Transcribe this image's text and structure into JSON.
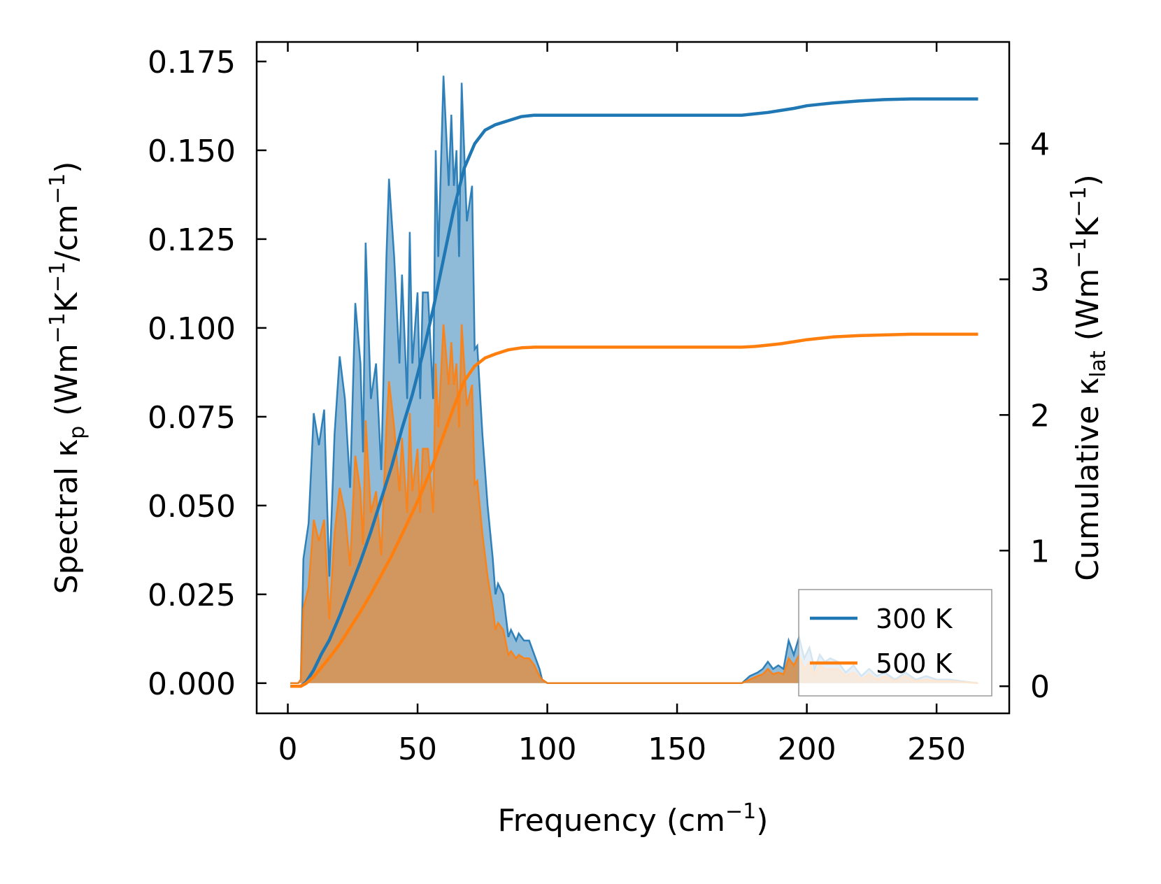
{
  "chart_data": {
    "type": "line",
    "title": "",
    "xlabel": "Frequency (cm",
    "xlabel_sup": "−1",
    "xlabel_end": ")",
    "ylabel_left": {
      "p1": "Spectral κ",
      "sub": "p",
      "p2": " (Wm",
      "sup1": "−1",
      "p3": "K",
      "sup2": "−1",
      "p4": "/cm",
      "sup3": "−1",
      "p5": ")"
    },
    "ylabel_right": {
      "p1": "Cumulative κ",
      "sub": "lat",
      "p2": " (Wm",
      "sup1": "−1",
      "p3": "K",
      "sup2": "−1",
      "p4": ")"
    },
    "xlim": [
      -12,
      278
    ],
    "ylim_left": [
      -0.0085,
      0.1805
    ],
    "ylim_right": [
      -0.2,
      4.75
    ],
    "xticks": [
      0,
      50,
      100,
      150,
      200,
      250
    ],
    "xtick_labels": [
      "0",
      "50",
      "100",
      "150",
      "200",
      "250"
    ],
    "yticks_left": [
      0,
      0.025,
      0.05,
      0.075,
      0.1,
      0.125,
      0.15,
      0.175
    ],
    "ytick_labels_left": [
      "0.000",
      "0.025",
      "0.050",
      "0.075",
      "0.100",
      "0.125",
      "0.150",
      "0.175"
    ],
    "yticks_right": [
      0,
      1,
      2,
      3,
      4
    ],
    "ytick_labels_right": [
      "0",
      "1",
      "2",
      "3",
      "4"
    ],
    "legend_location": "lower-right",
    "series": [
      {
        "name": "300 K",
        "color": "#1f77b4",
        "fill_color": "#1f77b4",
        "spectral": [
          [
            1,
            0
          ],
          [
            4,
            0
          ],
          [
            5,
            0.001
          ],
          [
            6,
            0.035
          ],
          [
            8,
            0.045
          ],
          [
            10,
            0.076
          ],
          [
            12,
            0.067
          ],
          [
            14,
            0.077
          ],
          [
            16,
            0.03
          ],
          [
            18,
            0.07
          ],
          [
            20,
            0.092
          ],
          [
            22,
            0.08
          ],
          [
            24,
            0.055
          ],
          [
            26,
            0.107
          ],
          [
            28,
            0.09
          ],
          [
            29,
            0.065
          ],
          [
            30,
            0.124
          ],
          [
            32,
            0.08
          ],
          [
            34,
            0.09
          ],
          [
            36,
            0.06
          ],
          [
            38,
            0.12
          ],
          [
            39,
            0.142
          ],
          [
            41,
            0.12
          ],
          [
            43,
            0.09
          ],
          [
            44,
            0.115
          ],
          [
            46,
            0.08
          ],
          [
            47,
            0.127
          ],
          [
            48,
            0.09
          ],
          [
            50,
            0.11
          ],
          [
            51,
            0.08
          ],
          [
            52,
            0.11
          ],
          [
            54,
            0.11
          ],
          [
            56,
            0.08
          ],
          [
            57,
            0.15
          ],
          [
            58,
            0.12
          ],
          [
            60,
            0.171
          ],
          [
            62,
            0.14
          ],
          [
            63,
            0.16
          ],
          [
            64,
            0.14
          ],
          [
            65,
            0.15
          ],
          [
            66,
            0.12
          ],
          [
            67,
            0.169
          ],
          [
            69,
            0.13
          ],
          [
            71,
            0.14
          ],
          [
            72,
            0.094
          ],
          [
            73,
            0.095
          ],
          [
            75,
            0.07
          ],
          [
            77,
            0.05
          ],
          [
            79,
            0.035
          ],
          [
            80,
            0.025
          ],
          [
            81,
            0.028
          ],
          [
            83,
            0.025
          ],
          [
            85,
            0.013
          ],
          [
            86,
            0.015
          ],
          [
            88,
            0.012
          ],
          [
            89,
            0.014
          ],
          [
            91,
            0.012
          ],
          [
            93,
            0.012
          ],
          [
            95,
            0.008
          ],
          [
            97,
            0.004
          ],
          [
            98,
            0.001
          ],
          [
            100,
            0
          ],
          [
            175,
            0
          ],
          [
            178,
            0.002
          ],
          [
            181,
            0.003
          ],
          [
            183,
            0.004
          ],
          [
            185,
            0.006
          ],
          [
            187,
            0.004
          ],
          [
            189,
            0.005
          ],
          [
            191,
            0.004
          ],
          [
            193,
            0.012
          ],
          [
            195,
            0.008
          ],
          [
            197,
            0.013
          ],
          [
            199,
            0.007
          ],
          [
            201,
            0.01
          ],
          [
            203,
            0.004
          ],
          [
            205,
            0.008
          ],
          [
            207,
            0.006
          ],
          [
            209,
            0.007
          ],
          [
            212,
            0.006
          ],
          [
            215,
            0.003
          ],
          [
            218,
            0.005
          ],
          [
            221,
            0.002
          ],
          [
            224,
            0.004
          ],
          [
            227,
            0.002
          ],
          [
            230,
            0.003
          ],
          [
            234,
            0.001
          ],
          [
            238,
            0.003
          ],
          [
            242,
            0.001
          ],
          [
            246,
            0.002
          ],
          [
            250,
            0.001
          ],
          [
            255,
            0.001
          ],
          [
            260,
            0.0005
          ],
          [
            266,
            0
          ]
        ],
        "cumulative": [
          [
            1,
            0
          ],
          [
            5,
            0
          ],
          [
            7,
            0.03
          ],
          [
            10,
            0.12
          ],
          [
            13,
            0.24
          ],
          [
            16,
            0.34
          ],
          [
            20,
            0.52
          ],
          [
            24,
            0.72
          ],
          [
            28,
            0.92
          ],
          [
            32,
            1.14
          ],
          [
            36,
            1.38
          ],
          [
            40,
            1.62
          ],
          [
            44,
            1.9
          ],
          [
            48,
            2.15
          ],
          [
            52,
            2.45
          ],
          [
            56,
            2.78
          ],
          [
            60,
            3.15
          ],
          [
            64,
            3.52
          ],
          [
            68,
            3.82
          ],
          [
            72,
            4.0
          ],
          [
            76,
            4.1
          ],
          [
            80,
            4.14
          ],
          [
            85,
            4.17
          ],
          [
            90,
            4.2
          ],
          [
            95,
            4.21
          ],
          [
            100,
            4.21
          ],
          [
            150,
            4.21
          ],
          [
            175,
            4.21
          ],
          [
            180,
            4.22
          ],
          [
            185,
            4.23
          ],
          [
            190,
            4.245
          ],
          [
            195,
            4.26
          ],
          [
            200,
            4.28
          ],
          [
            205,
            4.29
          ],
          [
            210,
            4.3
          ],
          [
            220,
            4.315
          ],
          [
            230,
            4.325
          ],
          [
            240,
            4.33
          ],
          [
            255,
            4.33
          ],
          [
            266,
            4.33
          ]
        ]
      },
      {
        "name": "500 K",
        "color": "#ff7f0e",
        "fill_color": "#ff7f0e",
        "spectral": [
          [
            1,
            0
          ],
          [
            4,
            0
          ],
          [
            5,
            0.001
          ],
          [
            6,
            0.021
          ],
          [
            8,
            0.027
          ],
          [
            10,
            0.046
          ],
          [
            12,
            0.04
          ],
          [
            14,
            0.046
          ],
          [
            16,
            0.018
          ],
          [
            18,
            0.042
          ],
          [
            20,
            0.055
          ],
          [
            22,
            0.048
          ],
          [
            24,
            0.033
          ],
          [
            26,
            0.064
          ],
          [
            28,
            0.054
          ],
          [
            29,
            0.039
          ],
          [
            30,
            0.074
          ],
          [
            32,
            0.048
          ],
          [
            34,
            0.054
          ],
          [
            36,
            0.036
          ],
          [
            38,
            0.072
          ],
          [
            39,
            0.085
          ],
          [
            41,
            0.072
          ],
          [
            43,
            0.054
          ],
          [
            44,
            0.069
          ],
          [
            46,
            0.048
          ],
          [
            47,
            0.076
          ],
          [
            48,
            0.054
          ],
          [
            50,
            0.066
          ],
          [
            51,
            0.048
          ],
          [
            52,
            0.066
          ],
          [
            54,
            0.066
          ],
          [
            56,
            0.048
          ],
          [
            57,
            0.09
          ],
          [
            58,
            0.072
          ],
          [
            60,
            0.101
          ],
          [
            62,
            0.084
          ],
          [
            63,
            0.096
          ],
          [
            64,
            0.084
          ],
          [
            65,
            0.09
          ],
          [
            66,
            0.072
          ],
          [
            67,
            0.101
          ],
          [
            69,
            0.078
          ],
          [
            71,
            0.084
          ],
          [
            72,
            0.056
          ],
          [
            73,
            0.057
          ],
          [
            75,
            0.042
          ],
          [
            77,
            0.03
          ],
          [
            79,
            0.021
          ],
          [
            80,
            0.015
          ],
          [
            81,
            0.017
          ],
          [
            83,
            0.015
          ],
          [
            85,
            0.008
          ],
          [
            86,
            0.009
          ],
          [
            88,
            0.007
          ],
          [
            89,
            0.008
          ],
          [
            91,
            0.007
          ],
          [
            93,
            0.007
          ],
          [
            95,
            0.005
          ],
          [
            97,
            0.002
          ],
          [
            98,
            0.001
          ],
          [
            100,
            0
          ],
          [
            175,
            0
          ],
          [
            178,
            0.001
          ],
          [
            181,
            0.002
          ],
          [
            183,
            0.0025
          ],
          [
            185,
            0.004
          ],
          [
            187,
            0.0025
          ],
          [
            189,
            0.003
          ],
          [
            191,
            0.0025
          ],
          [
            193,
            0.007
          ],
          [
            195,
            0.005
          ],
          [
            197,
            0.008
          ],
          [
            199,
            0.004
          ],
          [
            201,
            0.006
          ],
          [
            203,
            0.0025
          ],
          [
            205,
            0.005
          ],
          [
            207,
            0.004
          ],
          [
            209,
            0.004
          ],
          [
            212,
            0.004
          ],
          [
            215,
            0.002
          ],
          [
            218,
            0.003
          ],
          [
            221,
            0.001
          ],
          [
            224,
            0.0025
          ],
          [
            227,
            0.001
          ],
          [
            230,
            0.002
          ],
          [
            234,
            0.0006
          ],
          [
            238,
            0.002
          ],
          [
            242,
            0.0006
          ],
          [
            246,
            0.001
          ],
          [
            250,
            0.0006
          ],
          [
            255,
            0.0006
          ],
          [
            260,
            0.0003
          ],
          [
            266,
            0
          ]
        ],
        "cumulative": [
          [
            1,
            0
          ],
          [
            5,
            0
          ],
          [
            7,
            0.02
          ],
          [
            10,
            0.07
          ],
          [
            13,
            0.14
          ],
          [
            16,
            0.21
          ],
          [
            20,
            0.31
          ],
          [
            24,
            0.43
          ],
          [
            28,
            0.55
          ],
          [
            32,
            0.68
          ],
          [
            36,
            0.82
          ],
          [
            40,
            0.96
          ],
          [
            44,
            1.12
          ],
          [
            48,
            1.28
          ],
          [
            52,
            1.45
          ],
          [
            56,
            1.64
          ],
          [
            60,
            1.85
          ],
          [
            64,
            2.06
          ],
          [
            68,
            2.25
          ],
          [
            72,
            2.36
          ],
          [
            76,
            2.42
          ],
          [
            80,
            2.45
          ],
          [
            85,
            2.48
          ],
          [
            90,
            2.495
          ],
          [
            95,
            2.5
          ],
          [
            100,
            2.5
          ],
          [
            150,
            2.5
          ],
          [
            175,
            2.5
          ],
          [
            180,
            2.505
          ],
          [
            185,
            2.515
          ],
          [
            190,
            2.525
          ],
          [
            195,
            2.54
          ],
          [
            200,
            2.555
          ],
          [
            205,
            2.565
          ],
          [
            210,
            2.575
          ],
          [
            220,
            2.585
          ],
          [
            230,
            2.59
          ],
          [
            240,
            2.595
          ],
          [
            255,
            2.595
          ],
          [
            266,
            2.595
          ]
        ]
      }
    ]
  }
}
